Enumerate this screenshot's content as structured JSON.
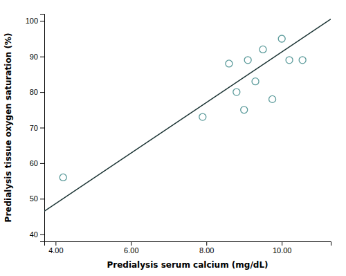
{
  "chart_data": {
    "type": "scatter",
    "xlabel": "Predialysis serum calcium (mg/dL)",
    "ylabel": "Predialysis tissue oxygen saturation (%)",
    "series": [
      {
        "type": "scatter",
        "color": "#5a9a9a",
        "marker": "open-circle",
        "x": [
          4.2,
          7.9,
          8.6,
          8.8,
          9.0,
          9.1,
          9.3,
          9.5,
          9.75,
          10.0,
          10.2,
          10.55
        ],
        "values": [
          56,
          73,
          88,
          80,
          75,
          89,
          83,
          92,
          78,
          95,
          89,
          89
        ]
      },
      {
        "type": "line",
        "color": "#1a3333",
        "x": [
          3.7,
          11.3
        ],
        "values": [
          46.5,
          100.5
        ]
      }
    ],
    "xlim": [
      3.7,
      11.3
    ],
    "ylim": [
      38,
      102
    ],
    "xticks": [
      {
        "value": 4.0,
        "label": "4.00"
      },
      {
        "value": 6.0,
        "label": "6.00"
      },
      {
        "value": 8.0,
        "label": "8.00"
      },
      {
        "value": 10.0,
        "label": "10.00"
      }
    ],
    "yticks": [
      40,
      50,
      60,
      70,
      80,
      90,
      100
    ],
    "grid": false
  }
}
